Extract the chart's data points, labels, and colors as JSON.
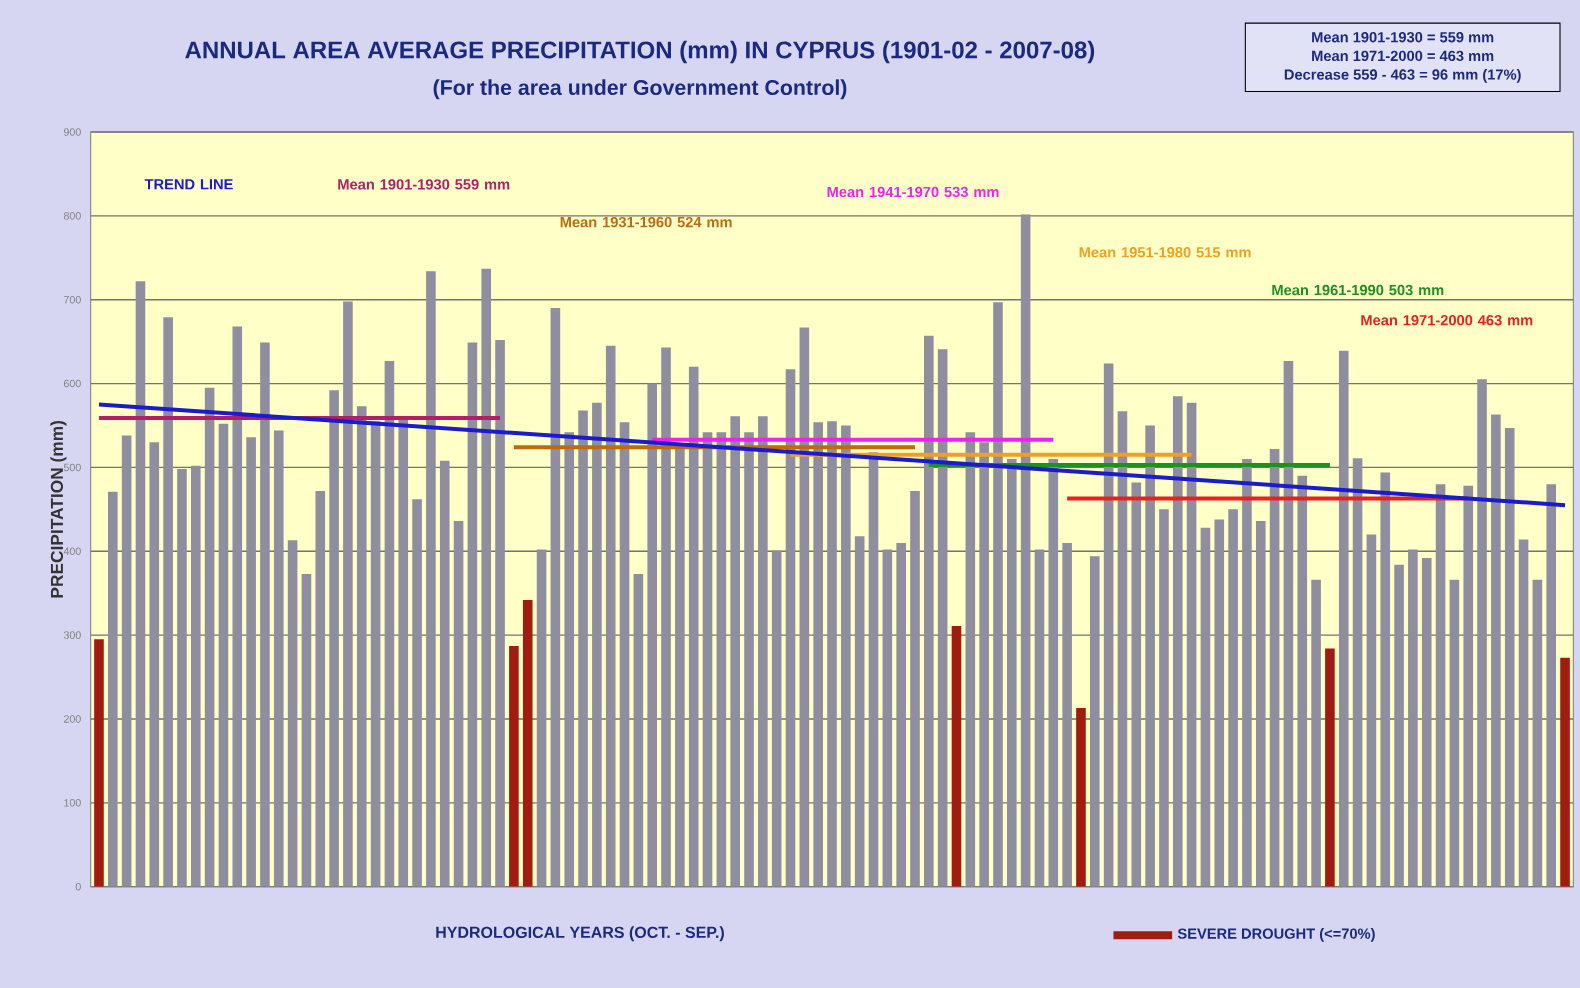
{
  "chart_data": {
    "type": "bar",
    "title": "ANNUAL AREA AVERAGE PRECIPITATION (mm) IN CYPRUS (1901-02 - 2007-08)",
    "subtitle": "(For the area under Government Control)",
    "xlabel": "HYDROLOGICAL YEARS (OCT. - SEP.)",
    "ylabel": "PRECIPITATION (mm)",
    "annotations": [
      "Mean 1901-1930 = 559 mm",
      "Mean 1971-2000 = 463 mm",
      "Decrease 559 - 463 = 96 mm (17%)"
    ],
    "categories": [
      null,
      null,
      null,
      null,
      null,
      null,
      null,
      null,
      null,
      null,
      null,
      null,
      null,
      null,
      null,
      null,
      null,
      null,
      null,
      null,
      null,
      null,
      null,
      null,
      null,
      null,
      null,
      null,
      null,
      null,
      null,
      null,
      null,
      null,
      null,
      null,
      null,
      null,
      null,
      null,
      null,
      null,
      null,
      null,
      null,
      null,
      null,
      null,
      null,
      null,
      null,
      null,
      null,
      null,
      null,
      null,
      null,
      null,
      null,
      null,
      null,
      null,
      null,
      null,
      null,
      null,
      null,
      null,
      null,
      null,
      null,
      null,
      null,
      null,
      null,
      null,
      null,
      null,
      null,
      null,
      null,
      null,
      null,
      null,
      null,
      null,
      null,
      null,
      null,
      null,
      null,
      null,
      null,
      null,
      null,
      null,
      null,
      null,
      null,
      null,
      null,
      null,
      null,
      null,
      null,
      null,
      null
    ],
    "ylim": [
      0,
      900
    ],
    "yticks": [
      0,
      100,
      200,
      300,
      400,
      500,
      600,
      700,
      800,
      900
    ],
    "grid": "y",
    "legend": "bottom",
    "series": [
      {
        "color": "#8e8ea0",
        "values": [
          null,
          471,
          538,
          722,
          530,
          679,
          498,
          502,
          595,
          552,
          668,
          536,
          649,
          544,
          413,
          373,
          472,
          592,
          698,
          573,
          555,
          627,
          557,
          462,
          734,
          508,
          436,
          649,
          737,
          652,
          null,
          null,
          402,
          690,
          542,
          568,
          577,
          645,
          554,
          373,
          600,
          643,
          526,
          620,
          542,
          542,
          561,
          542,
          561,
          401,
          617,
          667,
          554,
          555,
          550,
          418,
          518,
          402,
          410,
          472,
          657,
          641,
          null,
          542,
          530,
          697,
          510,
          802,
          402,
          510,
          410,
          null,
          394,
          624,
          567,
          482,
          550,
          450,
          585,
          577,
          428,
          438,
          450,
          510,
          436,
          522,
          627,
          490,
          366,
          null,
          639,
          511,
          420,
          494,
          384,
          402,
          392,
          480,
          366,
          478,
          605,
          563,
          547,
          414,
          366,
          480,
          null
        ]
      },
      {
        "name": "SEVERE DROUGHT (<=70%)",
        "color": "#a01c10",
        "values": [
          295,
          null,
          null,
          null,
          null,
          null,
          null,
          null,
          null,
          null,
          null,
          null,
          null,
          null,
          null,
          null,
          null,
          null,
          null,
          null,
          null,
          null,
          null,
          null,
          null,
          null,
          null,
          null,
          null,
          null,
          287,
          342,
          null,
          null,
          null,
          null,
          null,
          null,
          null,
          null,
          null,
          null,
          null,
          null,
          null,
          null,
          null,
          null,
          null,
          null,
          null,
          null,
          null,
          null,
          null,
          null,
          null,
          null,
          null,
          null,
          null,
          null,
          311,
          null,
          null,
          null,
          null,
          null,
          null,
          null,
          null,
          213,
          null,
          null,
          null,
          null,
          null,
          null,
          null,
          null,
          null,
          null,
          null,
          null,
          null,
          null,
          null,
          null,
          null,
          284,
          null,
          null,
          null,
          null,
          null,
          null,
          null,
          null,
          null,
          null,
          null,
          null,
          null,
          null,
          null,
          null,
          273
        ]
      },
      {
        "type": "line",
        "name": "Mean 1901-1930 559 mm",
        "color": "#b0206a",
        "values": [
          559,
          559,
          559,
          559,
          559,
          559,
          559,
          559,
          559,
          559,
          559,
          559,
          559,
          559,
          559,
          559,
          559,
          559,
          559,
          559,
          559,
          559,
          559,
          559,
          559,
          559,
          559,
          559,
          559,
          559,
          null,
          null,
          null,
          null,
          null,
          null,
          null,
          null,
          null,
          null,
          null,
          null,
          null,
          null,
          null,
          null,
          null,
          null,
          null,
          null,
          null,
          null,
          null,
          null,
          null,
          null,
          null,
          null,
          null,
          null,
          null,
          null,
          null,
          null,
          null,
          null,
          null,
          null,
          null,
          null,
          null,
          null,
          null,
          null,
          null,
          null,
          null,
          null,
          null,
          null,
          null,
          null,
          null,
          null,
          null,
          null,
          null,
          null,
          null,
          null,
          null,
          null,
          null,
          null,
          null,
          null,
          null,
          null,
          null,
          null,
          null,
          null,
          null,
          null,
          null,
          null,
          null
        ]
      },
      {
        "type": "line",
        "name": "Mean 1931-1960 524 mm",
        "color": "#c06a10",
        "values": [
          null,
          null,
          null,
          null,
          null,
          null,
          null,
          null,
          null,
          null,
          null,
          null,
          null,
          null,
          null,
          null,
          null,
          null,
          null,
          null,
          null,
          null,
          null,
          null,
          null,
          null,
          null,
          null,
          null,
          null,
          524,
          524,
          524,
          524,
          524,
          524,
          524,
          524,
          524,
          524,
          524,
          524,
          524,
          524,
          524,
          524,
          524,
          524,
          524,
          524,
          524,
          524,
          524,
          524,
          524,
          524,
          524,
          524,
          524,
          524,
          null,
          null,
          null,
          null,
          null,
          null,
          null,
          null,
          null,
          null,
          null,
          null,
          null,
          null,
          null,
          null,
          null,
          null,
          null,
          null,
          null,
          null,
          null,
          null,
          null,
          null,
          null,
          null,
          null,
          null,
          null,
          null,
          null,
          null,
          null,
          null,
          null,
          null,
          null,
          null,
          null,
          null,
          null,
          null,
          null,
          null,
          null
        ]
      },
      {
        "type": "line",
        "name": "Mean 1941-1970 533 mm",
        "color": "#f020f0",
        "values": [
          null,
          null,
          null,
          null,
          null,
          null,
          null,
          null,
          null,
          null,
          null,
          null,
          null,
          null,
          null,
          null,
          null,
          null,
          null,
          null,
          null,
          null,
          null,
          null,
          null,
          null,
          null,
          null,
          null,
          null,
          null,
          null,
          null,
          null,
          null,
          null,
          null,
          null,
          null,
          null,
          533,
          533,
          533,
          533,
          533,
          533,
          533,
          533,
          533,
          533,
          533,
          533,
          533,
          533,
          533,
          533,
          533,
          533,
          533,
          533,
          533,
          533,
          533,
          533,
          533,
          533,
          533,
          533,
          533,
          533,
          null,
          null,
          null,
          null,
          null,
          null,
          null,
          null,
          null,
          null,
          null,
          null,
          null,
          null,
          null,
          null,
          null,
          null,
          null,
          null,
          null,
          null,
          null,
          null,
          null,
          null,
          null,
          null,
          null,
          null,
          null,
          null,
          null,
          null,
          null,
          null,
          null
        ]
      },
      {
        "type": "line",
        "name": "Mean 1951-1980 515 mm",
        "color": "#f0a020",
        "values": [
          null,
          null,
          null,
          null,
          null,
          null,
          null,
          null,
          null,
          null,
          null,
          null,
          null,
          null,
          null,
          null,
          null,
          null,
          null,
          null,
          null,
          null,
          null,
          null,
          null,
          null,
          null,
          null,
          null,
          null,
          null,
          null,
          null,
          null,
          null,
          null,
          null,
          null,
          null,
          null,
          null,
          null,
          null,
          null,
          null,
          null,
          null,
          null,
          null,
          null,
          515,
          515,
          515,
          515,
          515,
          515,
          515,
          515,
          515,
          515,
          515,
          515,
          515,
          515,
          515,
          515,
          515,
          515,
          515,
          515,
          515,
          515,
          515,
          515,
          515,
          515,
          515,
          515,
          515,
          515,
          null,
          null,
          null,
          null,
          null,
          null,
          null,
          null,
          null,
          null,
          null,
          null,
          null,
          null,
          null,
          null,
          null,
          null,
          null,
          null,
          null,
          null,
          null,
          null,
          null,
          null,
          null
        ]
      },
      {
        "type": "line",
        "name": "Mean 1961-1990 503 mm",
        "color": "#209020",
        "values": [
          null,
          null,
          null,
          null,
          null,
          null,
          null,
          null,
          null,
          null,
          null,
          null,
          null,
          null,
          null,
          null,
          null,
          null,
          null,
          null,
          null,
          null,
          null,
          null,
          null,
          null,
          null,
          null,
          null,
          null,
          null,
          null,
          null,
          null,
          null,
          null,
          null,
          null,
          null,
          null,
          null,
          null,
          null,
          null,
          null,
          null,
          null,
          null,
          null,
          null,
          null,
          null,
          null,
          null,
          null,
          null,
          null,
          null,
          null,
          null,
          503,
          503,
          503,
          503,
          503,
          503,
          503,
          503,
          503,
          503,
          503,
          503,
          503,
          503,
          503,
          503,
          503,
          503,
          503,
          503,
          503,
          503,
          503,
          503,
          503,
          503,
          503,
          503,
          503,
          503,
          null,
          null,
          null,
          null,
          null,
          null,
          null,
          null,
          null,
          null,
          null,
          null,
          null,
          null,
          null,
          null,
          null
        ]
      },
      {
        "type": "line",
        "name": "Mean 1971-2000 463 mm",
        "color": "#e82020",
        "values": [
          null,
          null,
          null,
          null,
          null,
          null,
          null,
          null,
          null,
          null,
          null,
          null,
          null,
          null,
          null,
          null,
          null,
          null,
          null,
          null,
          null,
          null,
          null,
          null,
          null,
          null,
          null,
          null,
          null,
          null,
          null,
          null,
          null,
          null,
          null,
          null,
          null,
          null,
          null,
          null,
          null,
          null,
          null,
          null,
          null,
          null,
          null,
          null,
          null,
          null,
          null,
          null,
          null,
          null,
          null,
          null,
          null,
          null,
          null,
          null,
          null,
          null,
          null,
          null,
          null,
          null,
          null,
          null,
          null,
          null,
          463,
          463,
          463,
          463,
          463,
          463,
          463,
          463,
          463,
          463,
          463,
          463,
          463,
          463,
          463,
          463,
          463,
          463,
          463,
          463,
          463,
          463,
          463,
          463,
          463,
          463,
          463,
          463,
          463,
          463,
          null,
          null,
          null,
          null,
          null,
          null,
          null
        ]
      },
      {
        "type": "line",
        "name": "TREND LINE",
        "color": "#1a1ad0",
        "values": [
          575,
          null,
          null,
          null,
          null,
          null,
          null,
          null,
          null,
          null,
          null,
          null,
          null,
          null,
          null,
          null,
          null,
          null,
          null,
          null,
          null,
          null,
          null,
          null,
          null,
          null,
          null,
          null,
          null,
          null,
          null,
          null,
          null,
          null,
          null,
          null,
          null,
          null,
          null,
          null,
          null,
          null,
          null,
          null,
          null,
          null,
          null,
          null,
          null,
          null,
          null,
          null,
          null,
          null,
          null,
          null,
          null,
          null,
          null,
          null,
          null,
          null,
          null,
          null,
          null,
          null,
          null,
          null,
          null,
          null,
          null,
          null,
          null,
          null,
          null,
          null,
          null,
          null,
          null,
          null,
          null,
          null,
          null,
          null,
          null,
          null,
          null,
          null,
          null,
          null,
          null,
          null,
          null,
          null,
          null,
          null,
          null,
          null,
          null,
          null,
          null,
          null,
          null,
          null,
          null,
          null,
          455
        ]
      }
    ]
  }
}
